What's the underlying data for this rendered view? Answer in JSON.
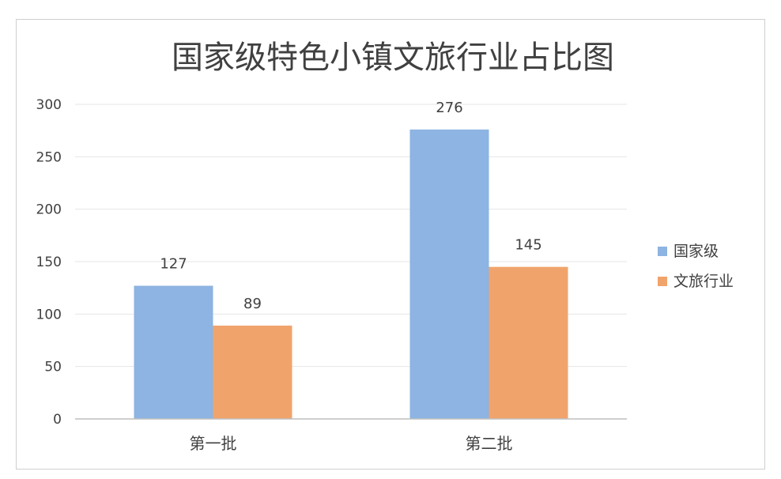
{
  "chart_data": {
    "type": "bar",
    "title": "国家级特色小镇文旅行业占比图",
    "categories": [
      "第一批",
      "第二批"
    ],
    "series": [
      {
        "name": "国家级",
        "values": [
          127,
          276
        ],
        "color": "#8db4e2"
      },
      {
        "name": "文旅行业",
        "values": [
          89,
          145
        ],
        "color": "#f0a46c"
      }
    ],
    "ylim": [
      0,
      300
    ],
    "yticks": [
      0,
      50,
      100,
      150,
      200,
      250,
      300
    ],
    "grid": true,
    "legend": "right",
    "data_labels": true
  }
}
